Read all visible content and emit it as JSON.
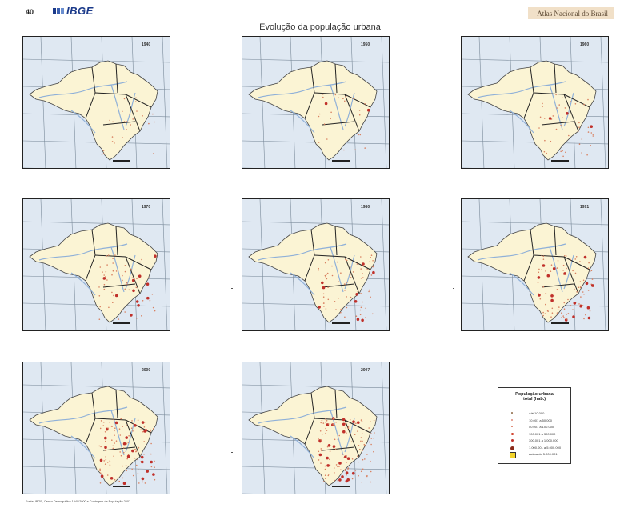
{
  "header": {
    "page_number": "40",
    "logo_text": "IBGE",
    "publication": "Atlas Nacional do Brasil"
  },
  "title": "Evolução da população urbana",
  "maps": [
    {
      "year": "1940",
      "level": 1
    },
    {
      "year": "1950",
      "level": 1
    },
    {
      "year": "1960",
      "level": 2
    },
    {
      "year": "1970",
      "level": 3
    },
    {
      "year": "1980",
      "level": 4
    },
    {
      "year": "1991",
      "level": 5
    },
    {
      "year": "2000",
      "level": 6
    },
    {
      "year": "2007",
      "level": 7
    }
  ],
  "legend": {
    "title_line1": "População urbana",
    "title_line2": "total (hab.)",
    "classes": [
      {
        "label": "Até 10.000",
        "symbol": "dot-tiny",
        "color": "#9a7a5a"
      },
      {
        "label": "10.001 a 50.000",
        "symbol": "dot-small",
        "color": "#e08a7a"
      },
      {
        "label": "50.001 a 100.000",
        "symbol": "dot-small",
        "color": "#d86b50"
      },
      {
        "label": "100.001 a 300.000",
        "symbol": "dot-medium",
        "color": "#d0402a"
      },
      {
        "label": "300.001 a 1.000.000",
        "symbol": "dot-medium",
        "color": "#c0302a"
      },
      {
        "label": "1.000.001 a 5.000.000",
        "symbol": "circle-large",
        "color": "#8a2a1a"
      },
      {
        "label": "Acima de 5.000.001",
        "symbol": "square",
        "color": "#f2d32a"
      }
    ]
  },
  "source": "Fonte: IBGE, Censo Demográfico 1940/2000 e Contagem da População 2007."
}
